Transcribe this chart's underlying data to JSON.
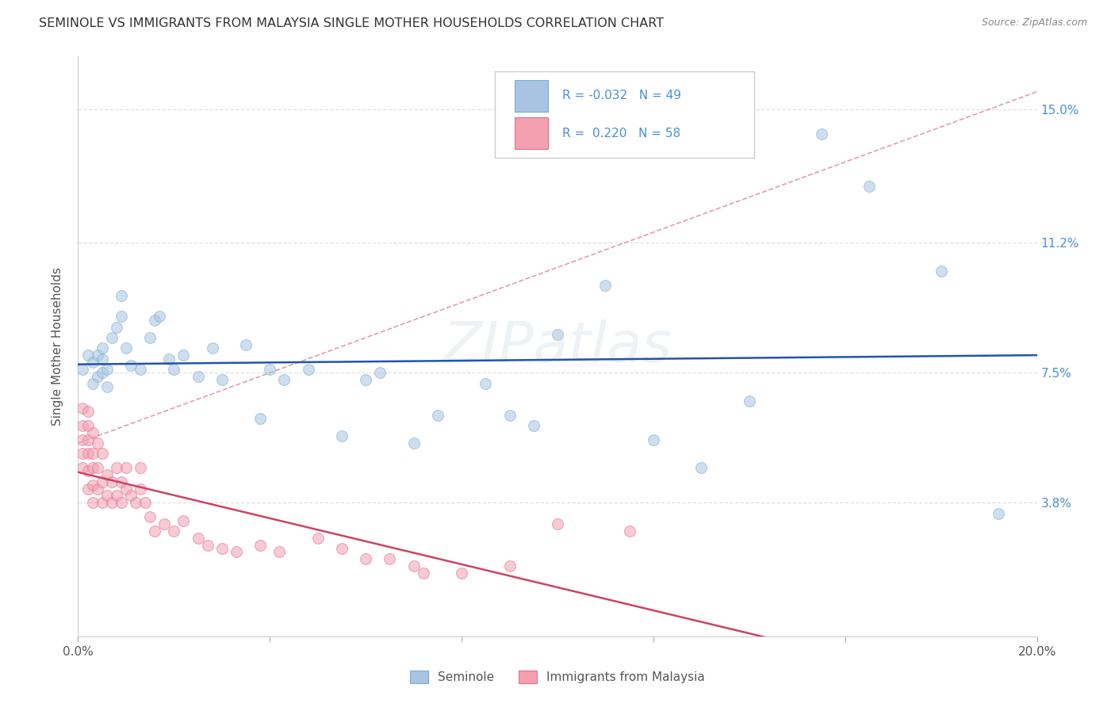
{
  "title": "SEMINOLE VS IMMIGRANTS FROM MALAYSIA SINGLE MOTHER HOUSEHOLDS CORRELATION CHART",
  "source": "Source: ZipAtlas.com",
  "ylabel": "Single Mother Households",
  "xlim": [
    0.0,
    0.2
  ],
  "ylim": [
    0.0,
    0.165
  ],
  "ytick_positions": [
    0.038,
    0.075,
    0.112,
    0.15
  ],
  "ytick_labels": [
    "3.8%",
    "7.5%",
    "11.2%",
    "15.0%"
  ],
  "seminole_color": "#a8c4e0",
  "malaysia_color": "#f4a0b0",
  "seminole_edge": "#7aadd4",
  "malaysia_edge": "#e07090",
  "trendline_seminole_color": "#2255aa",
  "trendline_malaysia_color": "#cc4466",
  "trendline_dashed_color": "#e0a0a8",
  "background_color": "#ffffff",
  "grid_color": "#e0e0e0",
  "title_color": "#333333",
  "axis_color": "#4a90d9",
  "seminole_x": [
    0.001,
    0.002,
    0.003,
    0.003,
    0.004,
    0.004,
    0.005,
    0.005,
    0.005,
    0.006,
    0.006,
    0.007,
    0.008,
    0.009,
    0.009,
    0.01,
    0.011,
    0.013,
    0.015,
    0.016,
    0.017,
    0.019,
    0.02,
    0.022,
    0.025,
    0.028,
    0.03,
    0.035,
    0.038,
    0.04,
    0.043,
    0.048,
    0.055,
    0.06,
    0.063,
    0.07,
    0.075,
    0.085,
    0.09,
    0.095,
    0.1,
    0.11,
    0.12,
    0.13,
    0.14,
    0.155,
    0.165,
    0.18,
    0.192
  ],
  "seminole_y": [
    0.076,
    0.08,
    0.072,
    0.078,
    0.074,
    0.08,
    0.079,
    0.075,
    0.082,
    0.071,
    0.076,
    0.085,
    0.088,
    0.091,
    0.097,
    0.082,
    0.077,
    0.076,
    0.085,
    0.09,
    0.091,
    0.079,
    0.076,
    0.08,
    0.074,
    0.082,
    0.073,
    0.083,
    0.062,
    0.076,
    0.073,
    0.076,
    0.057,
    0.073,
    0.075,
    0.055,
    0.063,
    0.072,
    0.063,
    0.06,
    0.086,
    0.1,
    0.056,
    0.048,
    0.067,
    0.143,
    0.128,
    0.104,
    0.035
  ],
  "malaysia_x": [
    0.001,
    0.001,
    0.001,
    0.001,
    0.001,
    0.002,
    0.002,
    0.002,
    0.002,
    0.002,
    0.002,
    0.003,
    0.003,
    0.003,
    0.003,
    0.003,
    0.004,
    0.004,
    0.004,
    0.005,
    0.005,
    0.005,
    0.006,
    0.006,
    0.007,
    0.007,
    0.008,
    0.008,
    0.009,
    0.009,
    0.01,
    0.01,
    0.011,
    0.012,
    0.013,
    0.013,
    0.014,
    0.015,
    0.016,
    0.018,
    0.02,
    0.022,
    0.025,
    0.027,
    0.03,
    0.033,
    0.038,
    0.042,
    0.05,
    0.055,
    0.06,
    0.065,
    0.07,
    0.072,
    0.08,
    0.09,
    0.1,
    0.115
  ],
  "malaysia_y": [
    0.048,
    0.052,
    0.056,
    0.06,
    0.065,
    0.042,
    0.047,
    0.052,
    0.056,
    0.06,
    0.064,
    0.038,
    0.043,
    0.048,
    0.052,
    0.058,
    0.042,
    0.048,
    0.055,
    0.038,
    0.044,
    0.052,
    0.04,
    0.046,
    0.038,
    0.044,
    0.04,
    0.048,
    0.038,
    0.044,
    0.042,
    0.048,
    0.04,
    0.038,
    0.042,
    0.048,
    0.038,
    0.034,
    0.03,
    0.032,
    0.03,
    0.033,
    0.028,
    0.026,
    0.025,
    0.024,
    0.026,
    0.024,
    0.028,
    0.025,
    0.022,
    0.022,
    0.02,
    0.018,
    0.018,
    0.02,
    0.032,
    0.03
  ],
  "dashed_line": [
    [
      0.0,
      0.2
    ],
    [
      0.055,
      0.155
    ]
  ],
  "watermark": "ZIPatlas",
  "marker_size": 100,
  "marker_alpha": 0.55
}
